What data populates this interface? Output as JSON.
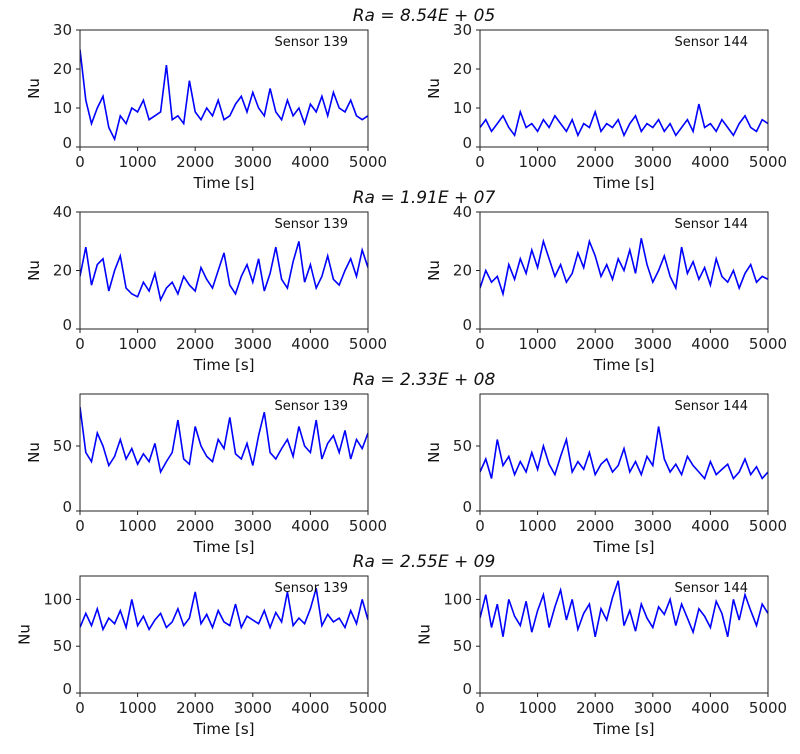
{
  "chart_data": [
    {
      "type": "line",
      "title": "Ra = 8.54E + 05",
      "panels": [
        {
          "annotation": "Sensor 139",
          "xlabel": "Time [s]",
          "ylabel": "Nu",
          "xlim": [
            0,
            5000
          ],
          "ylim": [
            0,
            30
          ],
          "yticks": [
            0,
            10,
            20,
            30
          ],
          "xticks": [
            0,
            1000,
            2000,
            3000,
            4000,
            5000
          ],
          "color": "#0000ff",
          "values": [
            25,
            12,
            6,
            10,
            13,
            5,
            2,
            8,
            6,
            10,
            9,
            12,
            7,
            8,
            9,
            21,
            7,
            8,
            6,
            17,
            9,
            7,
            10,
            8,
            12,
            7,
            8,
            11,
            13,
            9,
            14,
            10,
            8,
            15,
            9,
            7,
            12,
            8,
            10,
            6,
            11,
            9,
            13,
            8,
            14,
            10,
            9,
            12,
            8,
            7,
            8
          ]
        },
        {
          "annotation": "Sensor 144",
          "xlabel": "Time [s]",
          "ylabel": "Nu",
          "xlim": [
            0,
            5000
          ],
          "ylim": [
            0,
            30
          ],
          "yticks": [
            0,
            10,
            20,
            30
          ],
          "xticks": [
            0,
            1000,
            2000,
            3000,
            4000,
            5000
          ],
          "color": "#0000ff",
          "values": [
            5,
            7,
            4,
            6,
            8,
            5,
            3,
            9,
            5,
            6,
            4,
            7,
            5,
            8,
            6,
            4,
            7,
            3,
            6,
            5,
            9,
            4,
            6,
            5,
            7,
            3,
            6,
            8,
            4,
            6,
            5,
            7,
            4,
            6,
            3,
            5,
            7,
            4,
            11,
            5,
            6,
            4,
            7,
            5,
            3,
            6,
            8,
            5,
            4,
            7,
            6
          ]
        }
      ]
    },
    {
      "type": "line",
      "title": "Ra = 1.91E + 07",
      "panels": [
        {
          "annotation": "Sensor 139",
          "xlabel": "Time [s]",
          "ylabel": "Nu",
          "xlim": [
            0,
            5000
          ],
          "ylim": [
            0,
            40
          ],
          "yticks": [
            0,
            20,
            40
          ],
          "xticks": [
            0,
            1000,
            2000,
            3000,
            4000,
            5000
          ],
          "color": "#0000ff",
          "values": [
            18,
            28,
            15,
            22,
            24,
            13,
            20,
            25,
            14,
            12,
            11,
            16,
            13,
            19,
            10,
            14,
            16,
            12,
            18,
            15,
            13,
            21,
            17,
            14,
            20,
            26,
            15,
            12,
            18,
            22,
            16,
            24,
            13,
            19,
            28,
            17,
            14,
            23,
            30,
            16,
            22,
            14,
            18,
            25,
            17,
            15,
            20,
            24,
            18,
            27,
            21
          ]
        },
        {
          "annotation": "Sensor 144",
          "xlabel": "Time [s]",
          "ylabel": "Nu",
          "xlim": [
            0,
            5000
          ],
          "ylim": [
            0,
            40
          ],
          "yticks": [
            0,
            20,
            40
          ],
          "xticks": [
            0,
            1000,
            2000,
            3000,
            4000,
            5000
          ],
          "color": "#0000ff",
          "values": [
            14,
            20,
            16,
            18,
            12,
            22,
            17,
            24,
            19,
            27,
            21,
            30,
            24,
            18,
            22,
            16,
            19,
            26,
            21,
            30,
            25,
            18,
            22,
            17,
            24,
            20,
            27,
            19,
            31,
            22,
            16,
            20,
            25,
            18,
            14,
            28,
            19,
            23,
            17,
            21,
            15,
            24,
            18,
            16,
            20,
            14,
            19,
            22,
            16,
            18,
            17
          ]
        }
      ]
    },
    {
      "type": "line",
      "title": "Ra = 2.33E + 08",
      "panels": [
        {
          "annotation": "Sensor 139",
          "xlabel": "Time [s]",
          "ylabel": "Nu",
          "xlim": [
            0,
            5000
          ],
          "ylim": [
            0,
            90
          ],
          "yticks": [
            0,
            50
          ],
          "xticks": [
            0,
            1000,
            2000,
            3000,
            4000,
            5000
          ],
          "color": "#0000ff",
          "values": [
            80,
            45,
            38,
            60,
            50,
            35,
            42,
            55,
            40,
            48,
            36,
            44,
            38,
            52,
            30,
            38,
            45,
            70,
            40,
            36,
            65,
            50,
            42,
            38,
            55,
            48,
            72,
            44,
            40,
            52,
            35,
            58,
            76,
            45,
            40,
            48,
            55,
            42,
            65,
            50,
            45,
            70,
            40,
            52,
            58,
            45,
            62,
            40,
            55,
            48,
            60
          ]
        },
        {
          "annotation": "Sensor 144",
          "xlabel": "Time [s]",
          "ylabel": "Nu",
          "xlim": [
            0,
            5000
          ],
          "ylim": [
            0,
            90
          ],
          "yticks": [
            0,
            50
          ],
          "xticks": [
            0,
            1000,
            2000,
            3000,
            4000,
            5000
          ],
          "color": "#0000ff",
          "values": [
            30,
            40,
            25,
            55,
            35,
            42,
            28,
            38,
            30,
            45,
            32,
            50,
            36,
            28,
            42,
            55,
            30,
            38,
            32,
            45,
            28,
            36,
            40,
            30,
            35,
            48,
            30,
            38,
            28,
            42,
            35,
            65,
            40,
            30,
            36,
            28,
            42,
            35,
            30,
            25,
            38,
            28,
            32,
            36,
            25,
            30,
            40,
            28,
            34,
            25,
            30
          ]
        }
      ]
    },
    {
      "type": "line",
      "title": "Ra = 2.55E + 09",
      "panels": [
        {
          "annotation": "Sensor 139",
          "xlabel": "Time [s]",
          "ylabel": "Nu",
          "xlim": [
            0,
            5000
          ],
          "ylim": [
            0,
            125
          ],
          "yticks": [
            0,
            50,
            100
          ],
          "xticks": [
            0,
            1000,
            2000,
            3000,
            4000,
            5000
          ],
          "color": "#0000ff",
          "values": [
            70,
            85,
            72,
            90,
            68,
            80,
            74,
            88,
            70,
            100,
            72,
            82,
            68,
            78,
            85,
            70,
            76,
            90,
            72,
            80,
            108,
            74,
            84,
            70,
            88,
            76,
            72,
            95,
            70,
            82,
            78,
            74,
            88,
            70,
            86,
            76,
            108,
            72,
            80,
            74,
            90,
            112,
            72,
            84,
            76,
            80,
            70,
            88,
            74,
            100,
            78
          ]
        },
        {
          "annotation": "Sensor 144",
          "xlabel": "Time [s]",
          "ylabel": "Nu",
          "xlim": [
            0,
            5000
          ],
          "ylim": [
            0,
            125
          ],
          "yticks": [
            0,
            50,
            100
          ],
          "xticks": [
            0,
            1000,
            2000,
            3000,
            4000,
            5000
          ],
          "color": "#0000ff",
          "values": [
            80,
            105,
            70,
            95,
            60,
            100,
            82,
            72,
            98,
            65,
            88,
            105,
            70,
            92,
            110,
            78,
            100,
            68,
            85,
            95,
            60,
            90,
            78,
            102,
            120,
            72,
            88,
            66,
            95,
            80,
            70,
            92,
            84,
            100,
            72,
            95,
            80,
            65,
            90,
            82,
            70,
            98,
            85,
            60,
            100,
            78,
            105,
            88,
            72,
            95,
            85
          ]
        }
      ]
    }
  ]
}
